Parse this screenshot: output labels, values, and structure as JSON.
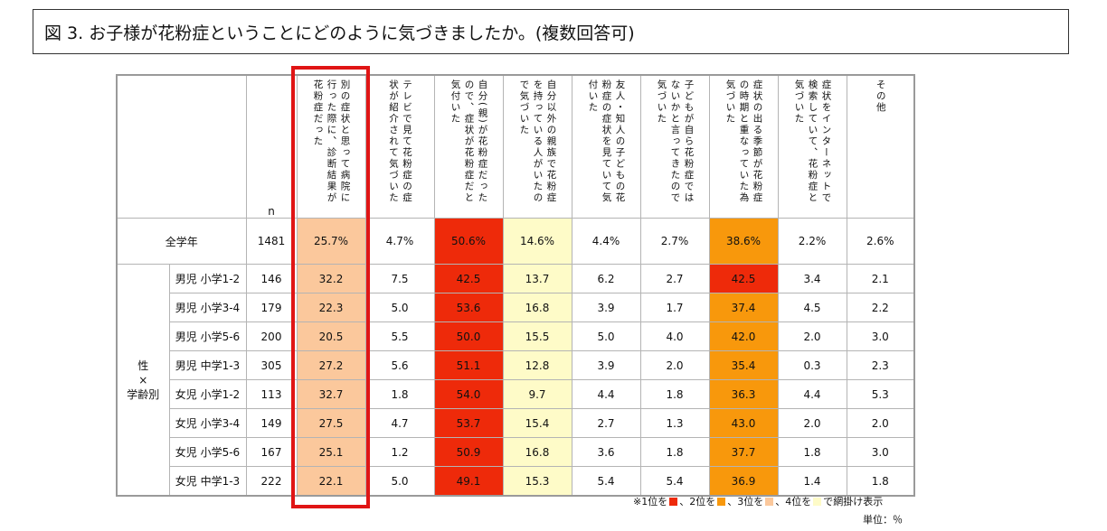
{
  "title": "図 3. お子様が花粉症ということにどのように気づきましたか。(複数回答可)",
  "columns": [
    "別の症状と思って病院に行った際に、診断結果が花粉症だった",
    "テレビで見て花粉症の症状が紹介されて気づいた",
    "自分(親)が花粉症だったので、症状が花粉症だと気付いた",
    "自分以外の親族で花粉症を持っている人がいたので気づいた",
    "友人・知人の子どもの花粉症の症状を見ていて気付いた",
    "子どもが自ら花粉症ではないかと言ってきたので気づいた",
    "症状の出る季節が花粉症の時期と重なっていた為気づいた",
    "症状をインターネットで検索していて、花粉症と気づいた",
    "その他"
  ],
  "n_header": "n",
  "total": {
    "label": "全学年",
    "n": "1481",
    "values": [
      "25.7%",
      "4.7%",
      "50.6%",
      "14.6%",
      "4.4%",
      "2.7%",
      "38.6%",
      "2.2%",
      "2.6%"
    ]
  },
  "group_label": {
    "l1": "性",
    "l2": "×",
    "l3": "学齢別"
  },
  "rows": [
    {
      "label": "男児 小学1-2",
      "n": "146",
      "values": [
        "32.2",
        "7.5",
        "42.5",
        "13.7",
        "6.2",
        "2.7",
        "42.5",
        "3.4",
        "2.1"
      ]
    },
    {
      "label": "男児 小学3-4",
      "n": "179",
      "values": [
        "22.3",
        "5.0",
        "53.6",
        "16.8",
        "3.9",
        "1.7",
        "37.4",
        "4.5",
        "2.2"
      ]
    },
    {
      "label": "男児 小学5-6",
      "n": "200",
      "values": [
        "20.5",
        "5.5",
        "50.0",
        "15.5",
        "5.0",
        "4.0",
        "42.0",
        "2.0",
        "3.0"
      ]
    },
    {
      "label": "男児 中学1-3",
      "n": "305",
      "values": [
        "27.2",
        "5.6",
        "51.1",
        "12.8",
        "3.9",
        "2.0",
        "35.4",
        "0.3",
        "2.3"
      ]
    },
    {
      "label": "女児 小学1-2",
      "n": "113",
      "values": [
        "32.7",
        "1.8",
        "54.0",
        "9.7",
        "4.4",
        "1.8",
        "36.3",
        "4.4",
        "5.3"
      ]
    },
    {
      "label": "女児 小学3-4",
      "n": "149",
      "values": [
        "27.5",
        "4.7",
        "53.7",
        "15.4",
        "2.7",
        "1.3",
        "43.0",
        "2.0",
        "2.0"
      ]
    },
    {
      "label": "女児 小学5-6",
      "n": "167",
      "values": [
        "25.1",
        "1.2",
        "50.9",
        "16.8",
        "3.6",
        "1.8",
        "37.7",
        "1.8",
        "3.0"
      ]
    },
    {
      "label": "女児 中学1-3",
      "n": "222",
      "values": [
        "22.1",
        "5.0",
        "49.1",
        "15.3",
        "5.4",
        "5.4",
        "36.9",
        "1.4",
        "1.8"
      ]
    }
  ],
  "col_colors": [
    "#fbc89c",
    "#ffffff",
    "#ee2a0a",
    "#fefbc8",
    "#ffffff",
    "#ffffff",
    "#f8980c",
    "#ffffff",
    "#ffffff"
  ],
  "row_overrides": {
    "0": {
      "2": "#ee2a0a",
      "6": "#ee2a0a"
    }
  },
  "note": {
    "p1": "※1位を",
    "c1": "#ee2a0a",
    "p2": "、2位を",
    "c2": "#f8980c",
    "p3": "、3位を",
    "c3": "#fbc89c",
    "p4": "、4位を",
    "c4": "#fefbc8",
    "p5": "で網掛け表示"
  },
  "unit": "単位：％"
}
